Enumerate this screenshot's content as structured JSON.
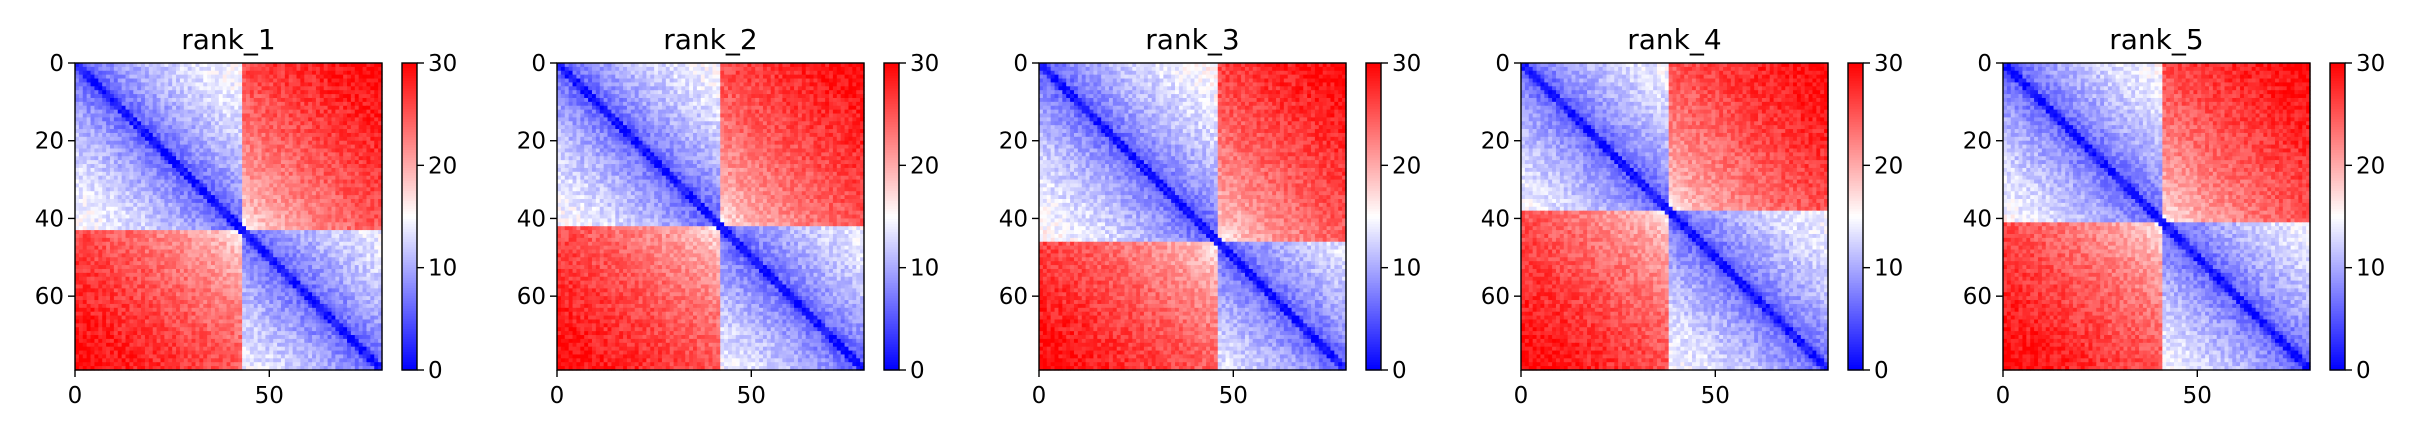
{
  "chart_data": [
    {
      "type": "heatmap",
      "title": "rank_1",
      "rows": 79,
      "cols": 79,
      "x_ticks": [
        0,
        50
      ],
      "y_ticks": [
        0,
        20,
        40,
        60
      ],
      "colorbar": {
        "vmin": 0,
        "vmax": 30,
        "ticks": [
          0,
          10,
          20,
          30
        ],
        "colormap": "bwr"
      },
      "domains": [
        [
          0,
          43
        ],
        [
          43,
          79
        ]
      ]
    },
    {
      "type": "heatmap",
      "title": "rank_2",
      "rows": 79,
      "cols": 79,
      "x_ticks": [
        0,
        50
      ],
      "y_ticks": [
        0,
        20,
        40,
        60
      ],
      "colorbar": {
        "vmin": 0,
        "vmax": 30,
        "ticks": [
          0,
          10,
          20,
          30
        ],
        "colormap": "bwr"
      },
      "domains": [
        [
          0,
          42
        ],
        [
          42,
          79
        ]
      ]
    },
    {
      "type": "heatmap",
      "title": "rank_3",
      "rows": 79,
      "cols": 79,
      "x_ticks": [
        0,
        50
      ],
      "y_ticks": [
        0,
        20,
        40,
        60
      ],
      "colorbar": {
        "vmin": 0,
        "vmax": 30,
        "ticks": [
          0,
          10,
          20,
          30
        ],
        "colormap": "bwr"
      },
      "domains": [
        [
          0,
          46
        ],
        [
          46,
          79
        ]
      ]
    },
    {
      "type": "heatmap",
      "title": "rank_4",
      "rows": 79,
      "cols": 79,
      "x_ticks": [
        0,
        50
      ],
      "y_ticks": [
        0,
        20,
        40,
        60
      ],
      "colorbar": {
        "vmin": 0,
        "vmax": 30,
        "ticks": [
          0,
          10,
          20,
          30
        ],
        "colormap": "bwr"
      },
      "domains": [
        [
          0,
          38
        ],
        [
          38,
          79
        ]
      ]
    },
    {
      "type": "heatmap",
      "title": "rank_5",
      "rows": 79,
      "cols": 79,
      "x_ticks": [
        0,
        50
      ],
      "y_ticks": [
        0,
        20,
        40,
        60
      ],
      "colorbar": {
        "vmin": 0,
        "vmax": 30,
        "ticks": [
          0,
          10,
          20,
          30
        ],
        "colormap": "bwr"
      },
      "domains": [
        [
          0,
          41
        ],
        [
          41,
          79
        ]
      ]
    }
  ],
  "colors": {
    "low": "#0000ff",
    "mid": "#ffffff",
    "high": "#ff0000"
  }
}
